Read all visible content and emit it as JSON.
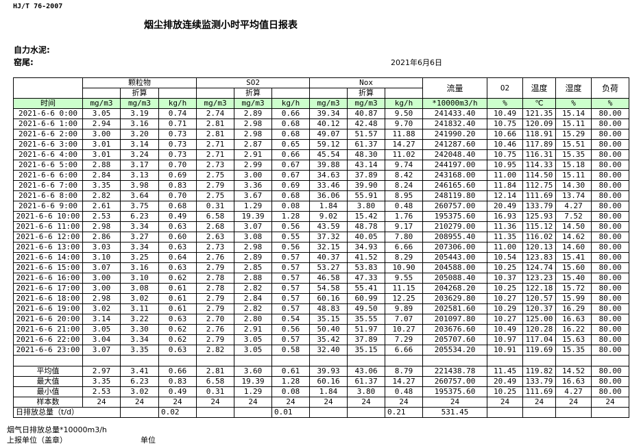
{
  "standard": "HJ/T  76-2007",
  "title": "烟尘排放连续监测小时平均值日报表",
  "company_label": "自力水泥:",
  "kiln_label": "窑尾:",
  "report_date": "2021年6月6日",
  "header": {
    "particulate": "颗粒物",
    "so2": "SO2",
    "nox": "Nox",
    "converted": "折算",
    "flow": "流量",
    "o2": "O2",
    "temperature": "温度",
    "humidity": "湿度",
    "load": "负荷",
    "time": "时间",
    "units": [
      "mg/m3",
      "mg/m3",
      "kg/h",
      "mg/m3",
      "mg/m3",
      "kg/h",
      "mg/m3",
      "mg/m3",
      "kg/h",
      "*10000m3/h",
      "%",
      "℃",
      "%",
      "%"
    ]
  },
  "rows": [
    [
      "2021-6-6 0:00",
      "3.05",
      "3.19",
      "0.74",
      "2.74",
      "2.89",
      "0.66",
      "39.34",
      "40.87",
      "9.50",
      "241433.40",
      "10.49",
      "121.35",
      "15.14",
      "80.00"
    ],
    [
      "2021-6-6 1:00",
      "2.94",
      "3.16",
      "0.71",
      "2.81",
      "2.98",
      "0.68",
      "40.12",
      "42.48",
      "9.70",
      "241832.40",
      "10.75",
      "120.09",
      "15.11",
      "80.00"
    ],
    [
      "2021-6-6 2:00",
      "3.00",
      "3.20",
      "0.73",
      "2.81",
      "2.98",
      "0.68",
      "49.07",
      "51.57",
      "11.88",
      "241990.20",
      "10.66",
      "118.91",
      "15.29",
      "80.00"
    ],
    [
      "2021-6-6 3:00",
      "3.01",
      "3.14",
      "0.73",
      "2.71",
      "2.87",
      "0.65",
      "59.12",
      "61.37",
      "14.27",
      "241287.60",
      "10.46",
      "117.89",
      "15.51",
      "80.00"
    ],
    [
      "2021-6-6 4:00",
      "3.01",
      "3.24",
      "0.73",
      "2.71",
      "2.91",
      "0.66",
      "45.54",
      "48.30",
      "11.02",
      "242048.40",
      "10.75",
      "116.31",
      "15.35",
      "80.00"
    ],
    [
      "2021-6-6 5:00",
      "2.88",
      "3.17",
      "0.70",
      "2.73",
      "2.99",
      "0.67",
      "39.88",
      "43.14",
      "9.74",
      "244197.00",
      "10.95",
      "114.33",
      "15.18",
      "80.00"
    ],
    [
      "2021-6-6 6:00",
      "2.84",
      "3.13",
      "0.69",
      "2.75",
      "3.00",
      "0.67",
      "34.63",
      "37.89",
      "8.42",
      "243168.00",
      "11.00",
      "114.50",
      "15.11",
      "80.00"
    ],
    [
      "2021-6-6 7:00",
      "3.35",
      "3.98",
      "0.83",
      "2.79",
      "3.36",
      "0.69",
      "33.46",
      "39.90",
      "8.24",
      "246165.60",
      "11.84",
      "112.75",
      "14.30",
      "80.00"
    ],
    [
      "2021-6-6 8:00",
      "2.82",
      "3.64",
      "0.70",
      "2.75",
      "3.67",
      "0.68",
      "36.06",
      "55.91",
      "8.95",
      "248119.80",
      "12.14",
      "111.69",
      "13.74",
      "80.00"
    ],
    [
      "2021-6-6 9:00",
      "2.61",
      "3.75",
      "0.68",
      "0.31",
      "1.29",
      "0.08",
      "1.84",
      "3.80",
      "0.48",
      "260757.00",
      "20.49",
      "133.79",
      "4.27",
      "80.00"
    ],
    [
      "2021-6-6 10:00",
      "2.53",
      "6.23",
      "0.49",
      "6.58",
      "19.39",
      "1.28",
      "9.02",
      "15.42",
      "1.76",
      "195375.60",
      "16.93",
      "125.93",
      "7.52",
      "80.00"
    ],
    [
      "2021-6-6 11:00",
      "2.98",
      "3.34",
      "0.63",
      "2.68",
      "3.07",
      "0.56",
      "43.59",
      "48.78",
      "9.17",
      "210279.00",
      "11.36",
      "115.12",
      "14.50",
      "80.00"
    ],
    [
      "2021-6-6 12:00",
      "2.86",
      "3.27",
      "0.60",
      "2.63",
      "3.08",
      "0.55",
      "37.32",
      "40.05",
      "7.80",
      "208955.40",
      "11.35",
      "116.02",
      "14.62",
      "80.00"
    ],
    [
      "2021-6-6 13:00",
      "3.03",
      "3.34",
      "0.63",
      "2.73",
      "2.98",
      "0.56",
      "32.15",
      "34.93",
      "6.66",
      "207306.00",
      "11.00",
      "120.13",
      "14.60",
      "80.00"
    ],
    [
      "2021-6-6 14:00",
      "3.10",
      "3.25",
      "0.64",
      "2.76",
      "2.89",
      "0.57",
      "40.37",
      "41.52",
      "8.29",
      "205443.00",
      "10.54",
      "123.83",
      "15.41",
      "80.00"
    ],
    [
      "2021-6-6 15:00",
      "3.07",
      "3.16",
      "0.63",
      "2.79",
      "2.85",
      "0.57",
      "53.27",
      "53.83",
      "10.90",
      "204588.00",
      "10.25",
      "124.74",
      "15.60",
      "80.00"
    ],
    [
      "2021-6-6 16:00",
      "3.00",
      "3.10",
      "0.62",
      "2.78",
      "2.88",
      "0.57",
      "46.58",
      "47.33",
      "9.55",
      "205088.40",
      "10.37",
      "123.23",
      "15.40",
      "80.00"
    ],
    [
      "2021-6-6 17:00",
      "3.00",
      "3.08",
      "0.61",
      "2.78",
      "2.82",
      "0.57",
      "54.58",
      "55.41",
      "11.15",
      "204268.20",
      "10.25",
      "122.18",
      "15.72",
      "80.00"
    ],
    [
      "2021-6-6 18:00",
      "2.98",
      "3.02",
      "0.61",
      "2.79",
      "2.84",
      "0.57",
      "60.16",
      "60.99",
      "12.25",
      "203629.80",
      "10.27",
      "120.57",
      "15.99",
      "80.00"
    ],
    [
      "2021-6-6 19:00",
      "3.02",
      "3.11",
      "0.61",
      "2.79",
      "2.82",
      "0.57",
      "48.83",
      "49.50",
      "9.89",
      "202581.60",
      "10.29",
      "120.37",
      "16.29",
      "80.00"
    ],
    [
      "2021-6-6 20:00",
      "3.14",
      "3.22",
      "0.63",
      "2.70",
      "2.80",
      "0.54",
      "35.15",
      "35.55",
      "7.07",
      "201097.80",
      "10.27",
      "125.00",
      "16.63",
      "80.00"
    ],
    [
      "2021-6-6 21:00",
      "3.05",
      "3.30",
      "0.62",
      "2.76",
      "2.91",
      "0.56",
      "50.40",
      "51.97",
      "10.27",
      "203676.60",
      "10.49",
      "120.28",
      "16.22",
      "80.00"
    ],
    [
      "2021-6-6 22:00",
      "3.04",
      "3.34",
      "0.62",
      "2.79",
      "3.05",
      "0.57",
      "35.42",
      "37.89",
      "7.29",
      "205707.60",
      "10.97",
      "117.04",
      "15.63",
      "80.00"
    ],
    [
      "2021-6-6 23:00",
      "3.07",
      "3.35",
      "0.63",
      "2.82",
      "3.05",
      "0.58",
      "32.40",
      "35.15",
      "6.66",
      "205534.20",
      "10.91",
      "119.69",
      "15.35",
      "80.00"
    ]
  ],
  "stats": [
    [
      "平均值",
      "2.97",
      "3.41",
      "0.66",
      "2.81",
      "3.60",
      "0.61",
      "39.93",
      "43.06",
      "8.79",
      "221438.78",
      "11.45",
      "119.82",
      "14.52",
      "80.00"
    ],
    [
      "最大值",
      "3.35",
      "6.23",
      "0.83",
      "6.58",
      "19.39",
      "1.28",
      "60.16",
      "61.37",
      "14.27",
      "260757.00",
      "20.49",
      "133.79",
      "16.63",
      "80.00"
    ],
    [
      "最小值",
      "2.53",
      "3.02",
      "0.49",
      "0.31",
      "1.29",
      "0.08",
      "1.84",
      "3.80",
      "0.48",
      "195375.60",
      "10.25",
      "111.69",
      "4.27",
      "80.00"
    ],
    [
      "样本数",
      "24",
      "24",
      "24",
      "24",
      "24",
      "24",
      "24",
      "24",
      "24",
      "24",
      "24",
      "24",
      "24",
      "24"
    ]
  ],
  "daily_total": {
    "label": "日排放总量（t/d）",
    "particulate_kgh": "0.02",
    "so2_kgh": "0.01",
    "nox_kgh": "0.21",
    "flow": "531.45"
  },
  "footer": {
    "flue_gas_total": "烟气日排放总量*10000m3/h",
    "reporting_unit": "上报单位（盖章）",
    "unit": "单位"
  }
}
